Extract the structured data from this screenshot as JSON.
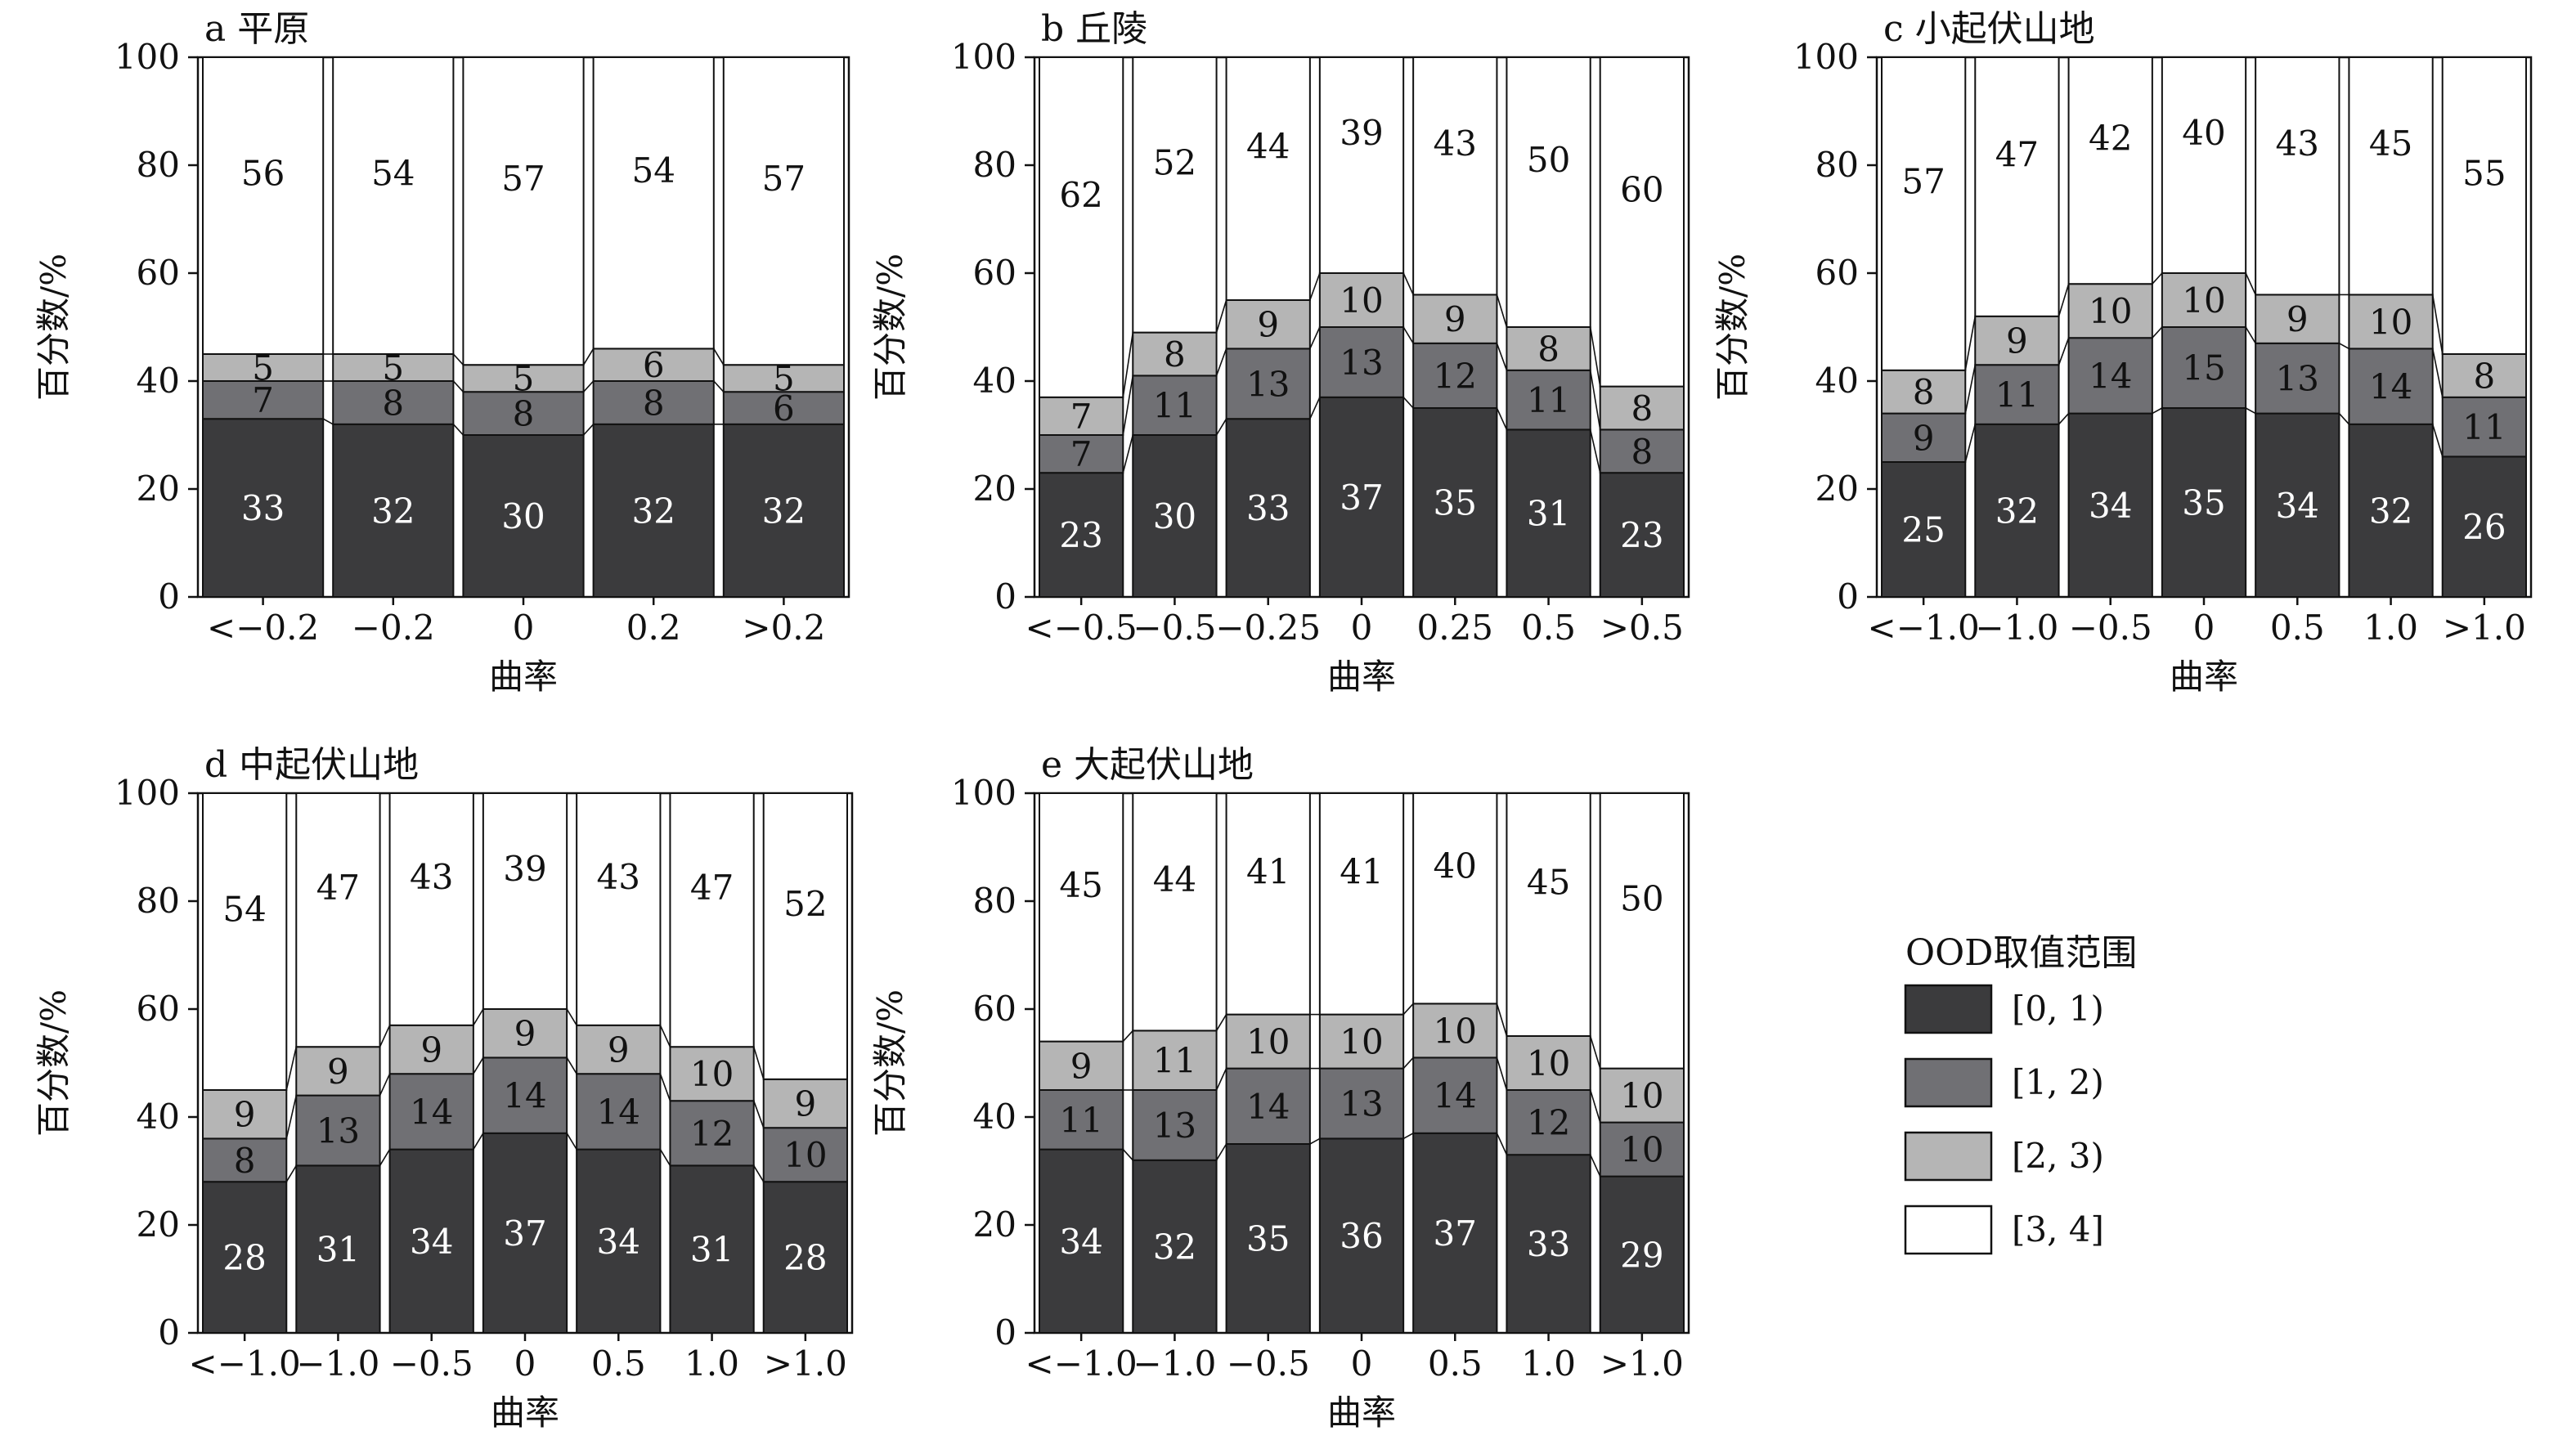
{
  "legend": {
    "title": "OOD取值范围",
    "items": [
      "[0, 1)",
      "[1, 2)",
      "[2, 3)",
      "[3, 4]"
    ],
    "colors": [
      "#3b3b3d",
      "#707074",
      "#b5b5b5",
      "#ffffff"
    ]
  },
  "chart_data": [
    {
      "type": "bar",
      "stacked": true,
      "title": "a 平原",
      "xlabel": "曲率",
      "ylabel": "百分数/%",
      "ylim": [
        0,
        100
      ],
      "yticks": [
        0,
        20,
        40,
        60,
        80,
        100
      ],
      "categories": [
        "<−0.2",
        "−0.2",
        "0",
        "0.2",
        ">0.2"
      ],
      "series": [
        {
          "name": "[0, 1)",
          "values": [
            33,
            32,
            30,
            32,
            32
          ]
        },
        {
          "name": "[1, 2)",
          "values": [
            7,
            8,
            8,
            8,
            6
          ]
        },
        {
          "name": "[2, 3)",
          "values": [
            5,
            5,
            5,
            6,
            5
          ]
        },
        {
          "name": "[3, 4]",
          "values": [
            56,
            54,
            57,
            54,
            57
          ]
        }
      ]
    },
    {
      "type": "bar",
      "stacked": true,
      "title": "b 丘陵",
      "xlabel": "曲率",
      "ylabel": "百分数/%",
      "ylim": [
        0,
        100
      ],
      "yticks": [
        0,
        20,
        40,
        60,
        80,
        100
      ],
      "categories": [
        "<−0.5",
        "−0.5",
        "−0.25",
        "0",
        "0.25",
        "0.5",
        ">0.5"
      ],
      "series": [
        {
          "name": "[0, 1)",
          "values": [
            23,
            30,
            33,
            37,
            35,
            31,
            23
          ]
        },
        {
          "name": "[1, 2)",
          "values": [
            7,
            11,
            13,
            13,
            12,
            11,
            8
          ]
        },
        {
          "name": "[2, 3)",
          "values": [
            7,
            8,
            9,
            10,
            9,
            8,
            8
          ]
        },
        {
          "name": "[3, 4]",
          "values": [
            62,
            52,
            44,
            39,
            43,
            50,
            60
          ]
        }
      ]
    },
    {
      "type": "bar",
      "stacked": true,
      "title": "c 小起伏山地",
      "xlabel": "曲率",
      "ylabel": "百分数/%",
      "ylim": [
        0,
        100
      ],
      "yticks": [
        0,
        20,
        40,
        60,
        80,
        100
      ],
      "categories": [
        "<−1.0",
        "−1.0",
        "−0.5",
        "0",
        "0.5",
        "1.0",
        ">1.0"
      ],
      "series": [
        {
          "name": "[0, 1)",
          "values": [
            25,
            32,
            34,
            35,
            34,
            32,
            26
          ]
        },
        {
          "name": "[1, 2)",
          "values": [
            9,
            11,
            14,
            15,
            13,
            14,
            11
          ]
        },
        {
          "name": "[2, 3)",
          "values": [
            8,
            9,
            10,
            10,
            9,
            10,
            8
          ]
        },
        {
          "name": "[3, 4]",
          "values": [
            57,
            47,
            42,
            40,
            43,
            45,
            55
          ]
        }
      ]
    },
    {
      "type": "bar",
      "stacked": true,
      "title": "d 中起伏山地",
      "xlabel": "曲率",
      "ylabel": "百分数/%",
      "ylim": [
        0,
        100
      ],
      "yticks": [
        0,
        20,
        40,
        60,
        80,
        100
      ],
      "categories": [
        "<−1.0",
        "−1.0",
        "−0.5",
        "0",
        "0.5",
        "1.0",
        ">1.0"
      ],
      "series": [
        {
          "name": "[0, 1)",
          "values": [
            28,
            31,
            34,
            37,
            34,
            31,
            28
          ]
        },
        {
          "name": "[1, 2)",
          "values": [
            8,
            13,
            14,
            14,
            14,
            12,
            10
          ]
        },
        {
          "name": "[2, 3)",
          "values": [
            9,
            9,
            9,
            9,
            9,
            10,
            9
          ]
        },
        {
          "name": "[3, 4]",
          "values": [
            54,
            47,
            43,
            39,
            43,
            47,
            52
          ]
        }
      ]
    },
    {
      "type": "bar",
      "stacked": true,
      "title": "e 大起伏山地",
      "xlabel": "曲率",
      "ylabel": "百分数/%",
      "ylim": [
        0,
        100
      ],
      "yticks": [
        0,
        20,
        40,
        60,
        80,
        100
      ],
      "categories": [
        "<−1.0",
        "−1.0",
        "−0.5",
        "0",
        "0.5",
        "1.0",
        ">1.0"
      ],
      "series": [
        {
          "name": "[0, 1)",
          "values": [
            34,
            32,
            35,
            36,
            37,
            33,
            29
          ]
        },
        {
          "name": "[1, 2)",
          "values": [
            11,
            13,
            14,
            13,
            14,
            12,
            10
          ]
        },
        {
          "name": "[2, 3)",
          "values": [
            9,
            11,
            10,
            10,
            10,
            10,
            10
          ]
        },
        {
          "name": "[3, 4]",
          "values": [
            45,
            44,
            41,
            41,
            40,
            45,
            50
          ]
        }
      ]
    }
  ]
}
